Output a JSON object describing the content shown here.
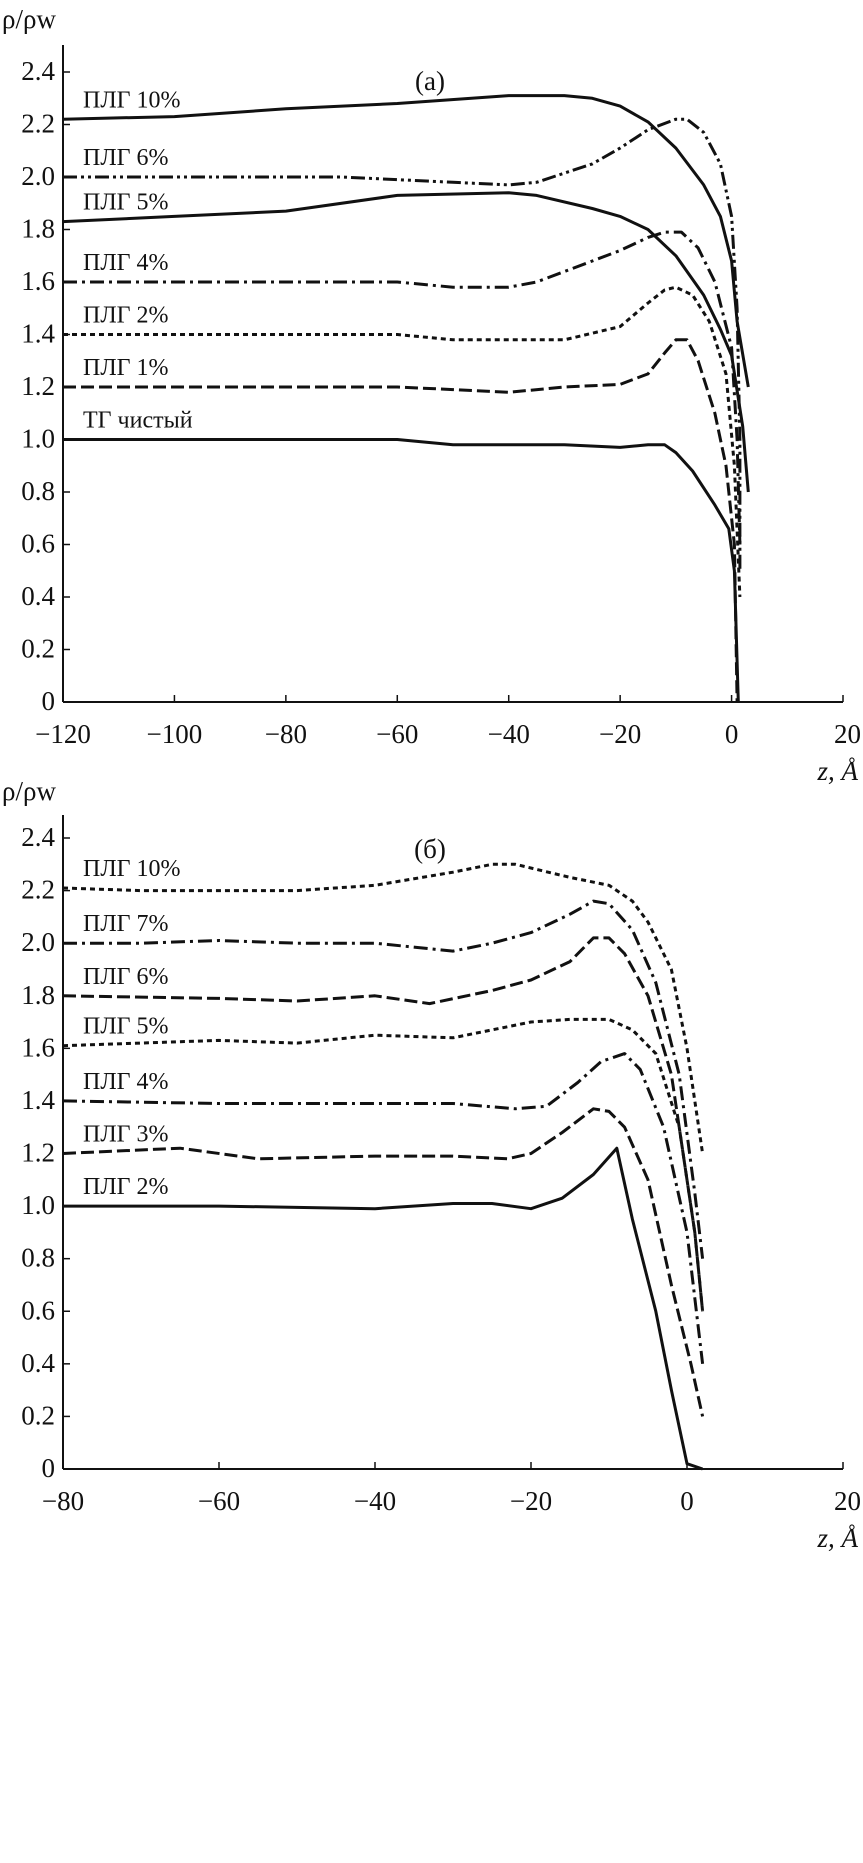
{
  "chart_data": [
    {
      "type": "line",
      "title": "(а)",
      "ylabel": "ρ/ρw",
      "xlabel": "z, Å",
      "xlim": [
        -120,
        20
      ],
      "ylim": [
        0,
        2.4
      ],
      "xticks": [
        "−120",
        "−100",
        "−80",
        "−60",
        "−40",
        "−20",
        "0",
        "20"
      ],
      "xtick_values": [
        -120,
        -100,
        -80,
        -60,
        -40,
        -20,
        0,
        20
      ],
      "yticks": [
        "0",
        "0.2",
        "0.4",
        "0.6",
        "0.8",
        "1.0",
        "1.2",
        "1.4",
        "1.6",
        "1.8",
        "2.0",
        "2.2",
        "2.4"
      ],
      "ytick_values": [
        0,
        0.2,
        0.4,
        0.6,
        0.8,
        1.0,
        1.2,
        1.4,
        1.6,
        1.8,
        2.0,
        2.2,
        2.4
      ],
      "series": [
        {
          "name": "ПЛГ 10%",
          "style": "solid",
          "x": [
            -120,
            -100,
            -80,
            -60,
            -40,
            -30,
            -25,
            -20,
            -15,
            -10,
            -5,
            -2,
            0,
            1,
            3
          ],
          "y": [
            2.22,
            2.23,
            2.26,
            2.28,
            2.31,
            2.31,
            2.3,
            2.27,
            2.21,
            2.11,
            1.97,
            1.85,
            1.68,
            1.45,
            1.2
          ]
        },
        {
          "name": "ПЛГ 6%",
          "style": "dashdotdot",
          "x": [
            -120,
            -70,
            -50,
            -40,
            -35,
            -25,
            -20,
            -15,
            -10,
            -8,
            -5,
            -2,
            0,
            1,
            1.5,
            1.5
          ],
          "y": [
            2.0,
            2.0,
            1.98,
            1.97,
            1.98,
            2.05,
            2.11,
            2.18,
            2.22,
            2.22,
            2.17,
            2.05,
            1.85,
            1.5,
            1.0,
            0.5
          ]
        },
        {
          "name": "ПЛГ 5%",
          "style": "solid",
          "x": [
            -120,
            -100,
            -80,
            -60,
            -40,
            -35,
            -25,
            -20,
            -15,
            -10,
            -5,
            -2,
            0,
            2,
            3
          ],
          "y": [
            1.83,
            1.85,
            1.87,
            1.93,
            1.94,
            1.93,
            1.88,
            1.85,
            1.8,
            1.7,
            1.55,
            1.42,
            1.32,
            1.05,
            0.8
          ]
        },
        {
          "name": "ПЛГ 4%",
          "style": "dashdot",
          "x": [
            -120,
            -60,
            -50,
            -40,
            -35,
            -25,
            -20,
            -15,
            -12,
            -9,
            -6,
            -3,
            0,
            1,
            1.5
          ],
          "y": [
            1.6,
            1.6,
            1.58,
            1.58,
            1.6,
            1.68,
            1.72,
            1.77,
            1.79,
            1.79,
            1.73,
            1.6,
            1.35,
            1.0,
            0.6
          ]
        },
        {
          "name": "ПЛГ 2%",
          "style": "dotted",
          "x": [
            -120,
            -60,
            -50,
            -40,
            -30,
            -20,
            -15,
            -12,
            -10,
            -7,
            -4,
            -1,
            0.5,
            1.5
          ],
          "y": [
            1.4,
            1.4,
            1.38,
            1.38,
            1.38,
            1.43,
            1.52,
            1.57,
            1.58,
            1.55,
            1.45,
            1.25,
            0.9,
            0.4
          ]
        },
        {
          "name": "ПЛГ 1%",
          "style": "dashed",
          "x": [
            -120,
            -60,
            -50,
            -40,
            -30,
            -20,
            -15,
            -12,
            -10,
            -8,
            -6,
            -3,
            -1,
            0.5,
            1
          ],
          "y": [
            1.2,
            1.2,
            1.19,
            1.18,
            1.2,
            1.21,
            1.25,
            1.33,
            1.38,
            1.38,
            1.3,
            1.1,
            0.9,
            0.6,
            0.0
          ]
        },
        {
          "name": "ТГ чистый",
          "style": "solid",
          "x": [
            -120,
            -60,
            -50,
            -40,
            -30,
            -20,
            -15,
            -12,
            -10,
            -7,
            -3,
            -0.5,
            0.5,
            1.2
          ],
          "y": [
            1.0,
            1.0,
            0.98,
            0.98,
            0.98,
            0.97,
            0.98,
            0.98,
            0.95,
            0.88,
            0.75,
            0.66,
            0.5,
            0.0
          ]
        }
      ]
    },
    {
      "type": "line",
      "title": "(б)",
      "ylabel": "ρ/ρw",
      "xlabel": "z, Å",
      "xlim": [
        -80,
        20
      ],
      "ylim": [
        0,
        2.4
      ],
      "xticks": [
        "−80",
        "−60",
        "−40",
        "−20",
        "0",
        "20"
      ],
      "xtick_values": [
        -80,
        -60,
        -40,
        -20,
        0,
        20
      ],
      "yticks": [
        "0",
        "0.2",
        "0.4",
        "0.6",
        "0.8",
        "1.0",
        "1.2",
        "1.4",
        "1.6",
        "1.8",
        "2.0",
        "2.2",
        "2.4"
      ],
      "ytick_values": [
        0,
        0.2,
        0.4,
        0.6,
        0.8,
        1.0,
        1.2,
        1.4,
        1.6,
        1.8,
        2.0,
        2.2,
        2.4
      ],
      "series": [
        {
          "name": "ПЛГ 10%",
          "style": "dotted",
          "x": [
            -80,
            -70,
            -60,
            -50,
            -40,
            -30,
            -25,
            -22,
            -15,
            -10,
            -7,
            -5,
            -2,
            0,
            1,
            2
          ],
          "y": [
            2.21,
            2.2,
            2.2,
            2.2,
            2.22,
            2.27,
            2.3,
            2.3,
            2.25,
            2.22,
            2.16,
            2.08,
            1.9,
            1.6,
            1.4,
            1.2
          ]
        },
        {
          "name": "ПЛГ 7%",
          "style": "dashdot",
          "x": [
            -80,
            -70,
            -60,
            -50,
            -40,
            -30,
            -25,
            -20,
            -15,
            -12,
            -10,
            -7,
            -4,
            -1,
            1,
            2
          ],
          "y": [
            2.0,
            2.0,
            2.01,
            2.0,
            2.0,
            1.97,
            2.0,
            2.04,
            2.11,
            2.16,
            2.15,
            2.05,
            1.85,
            1.5,
            1.05,
            0.8
          ]
        },
        {
          "name": "ПЛГ 6%",
          "style": "dashed",
          "x": [
            -80,
            -60,
            -50,
            -40,
            -33,
            -25,
            -20,
            -15,
            -12,
            -10,
            -8,
            -5,
            -2,
            1,
            2
          ],
          "y": [
            1.8,
            1.79,
            1.78,
            1.8,
            1.77,
            1.82,
            1.86,
            1.93,
            2.02,
            2.02,
            1.96,
            1.8,
            1.5,
            0.9,
            0.6
          ]
        },
        {
          "name": "ПЛГ 5%",
          "style": "dotted",
          "x": [
            -80,
            -60,
            -50,
            -40,
            -30,
            -20,
            -15,
            -10,
            -7,
            -4,
            -1,
            1,
            2
          ],
          "y": [
            1.61,
            1.63,
            1.62,
            1.65,
            1.64,
            1.7,
            1.71,
            1.71,
            1.67,
            1.58,
            1.3,
            0.9,
            0.6
          ]
        },
        {
          "name": "ПЛГ 4%",
          "style": "dashdot",
          "x": [
            -80,
            -60,
            -40,
            -30,
            -22,
            -18,
            -14,
            -11,
            -8,
            -6,
            -3,
            0,
            2
          ],
          "y": [
            1.4,
            1.39,
            1.39,
            1.39,
            1.37,
            1.38,
            1.47,
            1.55,
            1.58,
            1.52,
            1.3,
            0.9,
            0.4
          ]
        },
        {
          "name": "ПЛГ 3%",
          "style": "dashed",
          "x": [
            -80,
            -65,
            -55,
            -40,
            -30,
            -23,
            -20,
            -16,
            -12,
            -10,
            -8,
            -5,
            -2,
            0.5,
            2
          ],
          "y": [
            1.2,
            1.22,
            1.18,
            1.19,
            1.19,
            1.18,
            1.2,
            1.28,
            1.37,
            1.36,
            1.3,
            1.1,
            0.7,
            0.4,
            0.2
          ]
        },
        {
          "name": "ПЛГ 2%",
          "style": "solid",
          "x": [
            -80,
            -60,
            -40,
            -30,
            -25,
            -20,
            -16,
            -12,
            -9,
            -7,
            -4,
            -2,
            0,
            2
          ],
          "y": [
            1.0,
            1.0,
            0.99,
            1.01,
            1.01,
            0.99,
            1.03,
            1.12,
            1.22,
            0.95,
            0.6,
            0.3,
            0.02,
            0
          ]
        }
      ]
    }
  ]
}
